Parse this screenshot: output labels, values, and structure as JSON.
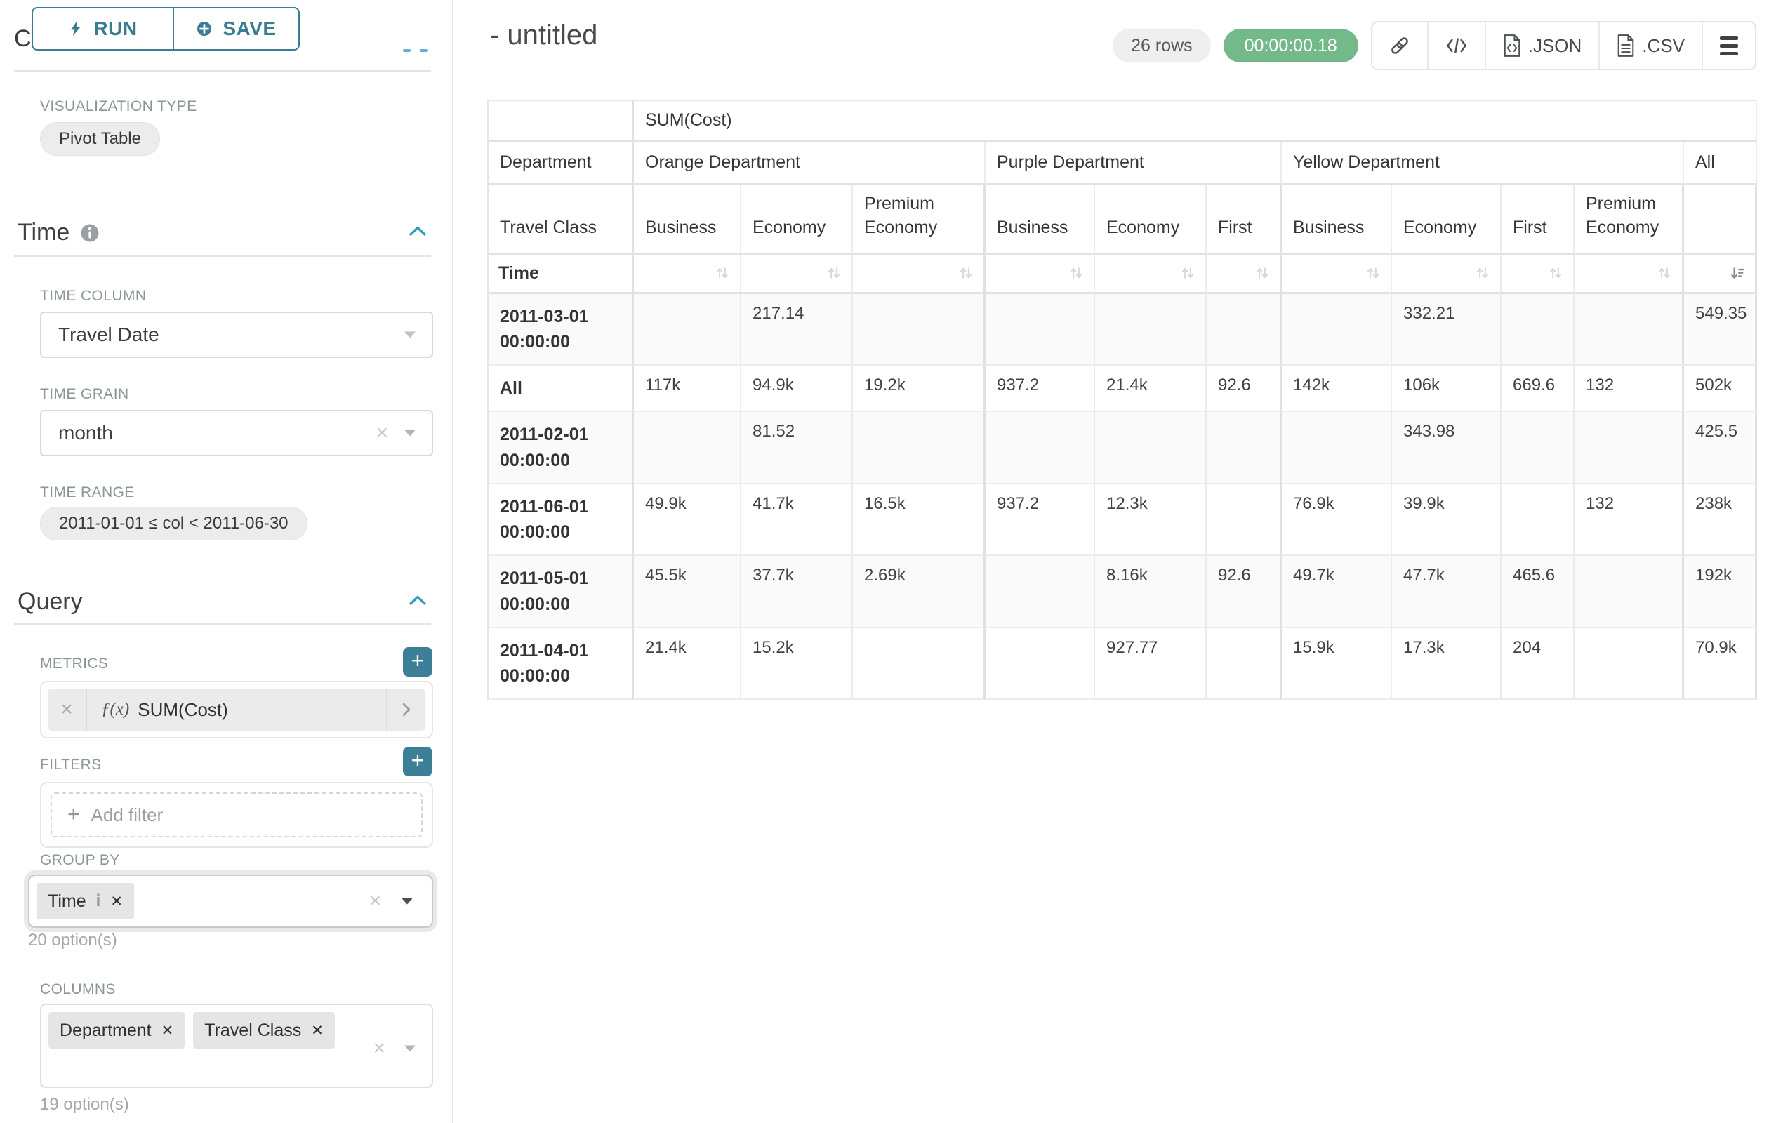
{
  "sidebar": {
    "run_button": "RUN",
    "save_button": "SAVE",
    "chart_type_header": "Chart Type",
    "visualization": {
      "label": "VISUALIZATION TYPE",
      "value": "Pivot Table"
    },
    "time": {
      "title": "Time",
      "column_label": "TIME COLUMN",
      "column_value": "Travel Date",
      "grain_label": "TIME GRAIN",
      "grain_value": "month",
      "range_label": "TIME RANGE",
      "range_value": "2011-01-01 ≤ col < 2011-06-30"
    },
    "query": {
      "title": "Query",
      "metrics_label": "METRICS",
      "metric_fx": "ƒ(x)",
      "metric_value": "SUM(Cost)",
      "filters_label": "FILTERS",
      "add_filter": "Add filter",
      "group_by_label": "GROUP BY",
      "group_by_tag": "Time",
      "group_by_hint": "20 option(s)",
      "columns_label": "COLUMNS",
      "columns_tags": [
        "Department",
        "Travel Class"
      ],
      "columns_hint": "19 option(s)"
    }
  },
  "header": {
    "title": "- untitled",
    "rows_badge": "26 rows",
    "timer_badge": "00:00:00.18",
    "export_json": ".JSON",
    "export_csv": ".CSV"
  },
  "colors": {
    "accent_teal": "#3a7d92",
    "timer_green": "#74b98a",
    "collapse_blue": "#2f9ec4"
  },
  "pivot": {
    "metric_header": "SUM(Cost)",
    "department_label": "Department",
    "travel_class_label": "Travel Class",
    "time_label": "Time",
    "column_groups": [
      {
        "label": "Orange Department",
        "span": 3
      },
      {
        "label": "Purple Department",
        "span": 3
      },
      {
        "label": "Yellow Department",
        "span": 4
      },
      {
        "label": "All",
        "span": 1
      }
    ],
    "class_headers": [
      "Business",
      "Economy",
      "Premium Economy",
      "Business",
      "Economy",
      "First",
      "Business",
      "Economy",
      "First",
      "Premium Economy",
      ""
    ],
    "rows": [
      {
        "label": "2011-03-01 00:00:00",
        "cells": [
          "",
          "217.14",
          "",
          "",
          "",
          "",
          "",
          "332.21",
          "",
          "",
          "549.35"
        ]
      },
      {
        "label": "All",
        "cells": [
          "117k",
          "94.9k",
          "19.2k",
          "937.2",
          "21.4k",
          "92.6",
          "142k",
          "106k",
          "669.6",
          "132",
          "502k"
        ]
      },
      {
        "label": "2011-02-01 00:00:00",
        "cells": [
          "",
          "81.52",
          "",
          "",
          "",
          "",
          "",
          "343.98",
          "",
          "",
          "425.5"
        ]
      },
      {
        "label": "2011-06-01 00:00:00",
        "cells": [
          "49.9k",
          "41.7k",
          "16.5k",
          "937.2",
          "12.3k",
          "",
          "76.9k",
          "39.9k",
          "",
          "132",
          "238k"
        ]
      },
      {
        "label": "2011-05-01 00:00:00",
        "cells": [
          "45.5k",
          "37.7k",
          "2.69k",
          "",
          "8.16k",
          "92.6",
          "49.7k",
          "47.7k",
          "465.6",
          "",
          "192k"
        ]
      },
      {
        "label": "2011-04-01 00:00:00",
        "cells": [
          "21.4k",
          "15.2k",
          "",
          "",
          "927.77",
          "",
          "15.9k",
          "17.3k",
          "204",
          "",
          "70.9k"
        ]
      }
    ]
  }
}
